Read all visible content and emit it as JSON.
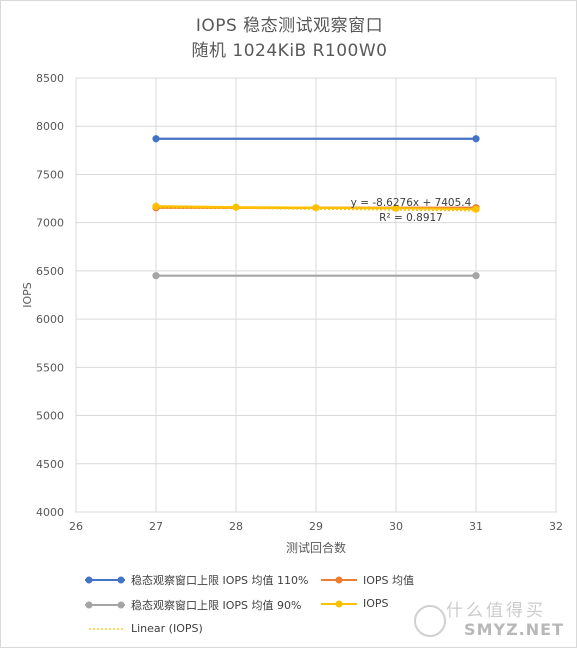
{
  "chart_data": {
    "type": "line",
    "title": "IOPS 稳态测试观察窗口",
    "subtitle": "随机 1024KiB R100W0",
    "xlabel": "测试回合数",
    "ylabel": "IOPS",
    "xlim": [
      26,
      32
    ],
    "ylim": [
      4000,
      8500
    ],
    "x_ticks": [
      "26",
      "27",
      "28",
      "29",
      "30",
      "31",
      "32"
    ],
    "y_ticks": [
      "4000",
      "4500",
      "5000",
      "5500",
      "6000",
      "6500",
      "7000",
      "7500",
      "8000",
      "8500"
    ],
    "grid": true,
    "legend_position": "bottom",
    "series": [
      {
        "name": "稳态观察窗口上限 IOPS 均值 110%",
        "color": "#4472C4",
        "x": [
          27,
          31
        ],
        "y": [
          7870,
          7870
        ]
      },
      {
        "name": "IOPS 均值",
        "color": "#ED7D31",
        "x": [
          27,
          31
        ],
        "y": [
          7155,
          7155
        ]
      },
      {
        "name": "稳态观察窗口上限 IOPS 均值 90%",
        "color": "#A5A5A5",
        "x": [
          27,
          31
        ],
        "y": [
          6450,
          6450
        ]
      },
      {
        "name": "IOPS",
        "color": "#FFC000",
        "x": [
          27,
          28,
          29,
          30,
          31
        ],
        "y": [
          7170,
          7160,
          7155,
          7150,
          7140
        ]
      }
    ],
    "trendline": {
      "name": "Linear (IOPS)",
      "color": "#FFC000",
      "equation": "y = -8.6276x + 7405.4",
      "r_squared": "R² = 0.8917",
      "slope": -8.6276,
      "intercept": 7405.4
    }
  },
  "watermark": {
    "site": "SMYZ.NET",
    "cn": "什么值得买"
  }
}
